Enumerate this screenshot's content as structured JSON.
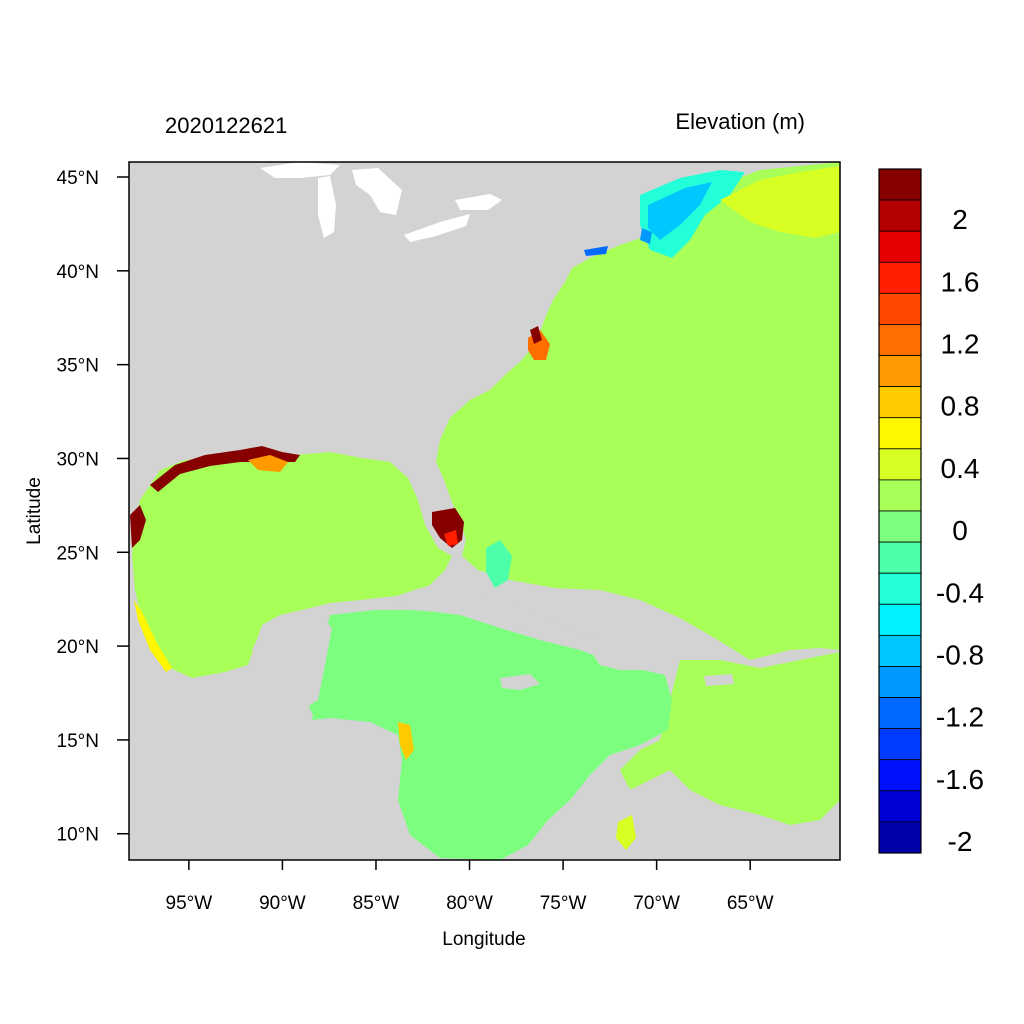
{
  "header": {
    "date_label": "2020122621",
    "variable_label": "Elevation (m)"
  },
  "axes": {
    "xlabel": "Longitude",
    "ylabel": "Latitude",
    "x_ticks": [
      "95°W",
      "90°W",
      "85°W",
      "80°W",
      "75°W",
      "70°W",
      "65°W"
    ],
    "x_tick_values": [
      -95,
      -90,
      -85,
      -80,
      -75,
      -70,
      -65
    ],
    "y_ticks": [
      "45°N",
      "40°N",
      "35°N",
      "30°N",
      "25°N",
      "20°N",
      "15°N",
      "10°N"
    ],
    "y_tick_values": [
      45,
      40,
      35,
      30,
      25,
      20,
      15,
      10
    ],
    "lon_range": [
      -98.2,
      -60.2
    ],
    "lat_range": [
      8.6,
      45.8
    ]
  },
  "colorbar": {
    "labels": [
      "2",
      "1.6",
      "1.2",
      "0.8",
      "0.4",
      "0",
      "-0.4",
      "-0.8",
      "-1.2",
      "-1.6",
      "-2"
    ],
    "colors": [
      "#870000",
      "#b40000",
      "#e60000",
      "#ff1e00",
      "#ff4800",
      "#ff6e00",
      "#ff9a00",
      "#ffcb00",
      "#fff700",
      "#d8ff23",
      "#a8ff57",
      "#7cff7f",
      "#4dffa8",
      "#23ffd8",
      "#00f2ff",
      "#00c8ff",
      "#009aff",
      "#0069ff",
      "#003cff",
      "#0010ff",
      "#0000d6",
      "#0000a8"
    ]
  },
  "colors": {
    "land": "#d3d3d3",
    "ocean_zero": "#a8ff57",
    "ocean_neg_small": "#7cff7f",
    "water_bodies": "#ffffff"
  }
}
